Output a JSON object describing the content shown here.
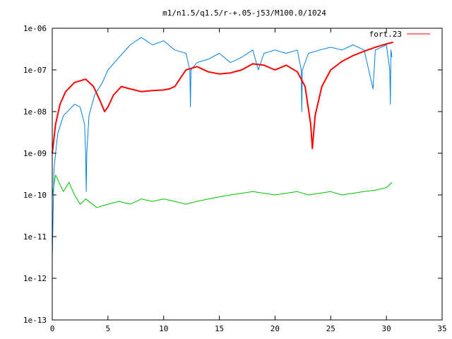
{
  "chart_data": {
    "type": "line",
    "title": "m1/n1.5/q1.5/r-+.05-j53/M100.0/1024",
    "xlabel": "",
    "ylabel": "",
    "xlim": [
      0,
      35
    ],
    "ylim": [
      1e-13,
      1e-06
    ],
    "y_scale": "log",
    "x_ticks": [
      0,
      5,
      10,
      15,
      20,
      25,
      30,
      35
    ],
    "x_tick_labels": [
      "0",
      "5",
      "10",
      "15",
      "20",
      "25",
      "30",
      "35"
    ],
    "y_ticks": [
      1e-13,
      1e-12,
      1e-11,
      1e-10,
      1e-09,
      1e-08,
      1e-07,
      1e-06
    ],
    "y_tick_labels": [
      "1e-13",
      "1e-12",
      "1e-11",
      "1e-10",
      "1e-09",
      "1e-08",
      "1e-07",
      "1e-06"
    ],
    "grid": false,
    "legend_position": "top-right",
    "series": [
      {
        "name": "fort.23",
        "color": "#ff0000",
        "x": [
          0,
          0.3,
          0.7,
          1.2,
          2.0,
          3.0,
          3.7,
          4.3,
          4.7,
          5.0,
          5.5,
          6.2,
          7.0,
          8.0,
          9.0,
          10.0,
          10.5,
          11.0,
          12.0,
          13.0,
          14.0,
          15.0,
          16.0,
          17.0,
          18.0,
          19.0,
          20.0,
          21.0,
          22.0,
          22.7,
          23.2,
          23.35,
          23.6,
          24.2,
          25.0,
          26.0,
          27.0,
          28.0,
          29.0,
          30.0,
          30.6
        ],
        "y": [
          1e-09,
          5e-09,
          1.5e-08,
          3e-08,
          5e-08,
          6e-08,
          4e-08,
          1.8e-08,
          1e-08,
          1.3e-08,
          2.5e-08,
          4e-08,
          3.5e-08,
          3e-08,
          3.2e-08,
          3.3e-08,
          3.5e-08,
          4e-08,
          1e-07,
          1.2e-07,
          9e-08,
          8e-08,
          8.5e-08,
          1e-07,
          1.4e-07,
          1.3e-07,
          1e-07,
          1.3e-07,
          9e-08,
          4e-08,
          5e-09,
          1.3e-09,
          8e-09,
          4e-08,
          1e-07,
          1.6e-07,
          2.2e-07,
          2.8e-07,
          3.5e-07,
          4.2e-07,
          4.6e-07
        ]
      },
      {
        "color": "#0080e0",
        "x": [
          0,
          0.15,
          0.3,
          0.5,
          1.0,
          2.0,
          2.5,
          2.9,
          3.0,
          3.05,
          3.1,
          3.3,
          3.8,
          4.5,
          5.0,
          6.0,
          7.0,
          8.0,
          9.0,
          10.0,
          11.0,
          12.0,
          12.35,
          12.4,
          12.45,
          13.0,
          14.0,
          15.0,
          16.0,
          17.0,
          18.0,
          18.5,
          19.0,
          20.0,
          21.0,
          22.0,
          22.35,
          22.4,
          22.45,
          23.0,
          24.0,
          25.0,
          26.0,
          27.0,
          28.0,
          28.8,
          29.0,
          30.0,
          30.3,
          30.35,
          30.4,
          30.5
        ],
        "y": [
          3e-12,
          4e-10,
          1e-09,
          3e-09,
          8e-09,
          1.5e-08,
          1.3e-08,
          5e-09,
          1e-09,
          1.2e-10,
          1e-09,
          8e-09,
          2.5e-08,
          5e-08,
          1e-07,
          2e-07,
          4e-07,
          6e-07,
          4e-07,
          5e-07,
          3e-07,
          2.5e-07,
          1e-07,
          1.3e-08,
          1e-07,
          1.5e-07,
          1.8e-07,
          2.5e-07,
          1.5e-07,
          2e-07,
          3e-07,
          1e-07,
          2.5e-07,
          3e-07,
          2.5e-07,
          3e-07,
          1e-07,
          1e-08,
          1e-07,
          2.5e-07,
          3e-07,
          3.5e-07,
          3e-07,
          4e-07,
          3e-07,
          3.5e-08,
          3e-07,
          4e-07,
          1e-07,
          1.5e-08,
          3e-07,
          2e-07
        ]
      },
      {
        "color": "#00c000",
        "x": [
          0,
          0.3,
          0.6,
          1.0,
          1.5,
          2.0,
          2.5,
          3.0,
          4.0,
          5.0,
          6.0,
          7.0,
          8.0,
          9.0,
          10.0,
          11.0,
          12.0,
          13.0,
          14.0,
          15.0,
          16.0,
          17.0,
          18.0,
          19.0,
          20.0,
          21.0,
          22.0,
          23.0,
          24.0,
          25.0,
          26.0,
          27.0,
          28.0,
          29.0,
          30.0,
          30.5
        ],
        "y": [
          1e-10,
          3e-10,
          2e-10,
          1.2e-10,
          2e-10,
          1e-10,
          6e-11,
          8e-11,
          5e-11,
          6e-11,
          7e-11,
          6e-11,
          8e-11,
          7e-11,
          8e-11,
          7e-11,
          6e-11,
          7e-11,
          8e-11,
          9e-11,
          1e-10,
          1.1e-10,
          1.2e-10,
          1.1e-10,
          1e-10,
          1.1e-10,
          1.2e-10,
          1e-10,
          1.1e-10,
          1.2e-10,
          1e-10,
          1.1e-10,
          1.2e-10,
          1.3e-10,
          1.5e-10,
          2e-10
        ]
      }
    ]
  }
}
